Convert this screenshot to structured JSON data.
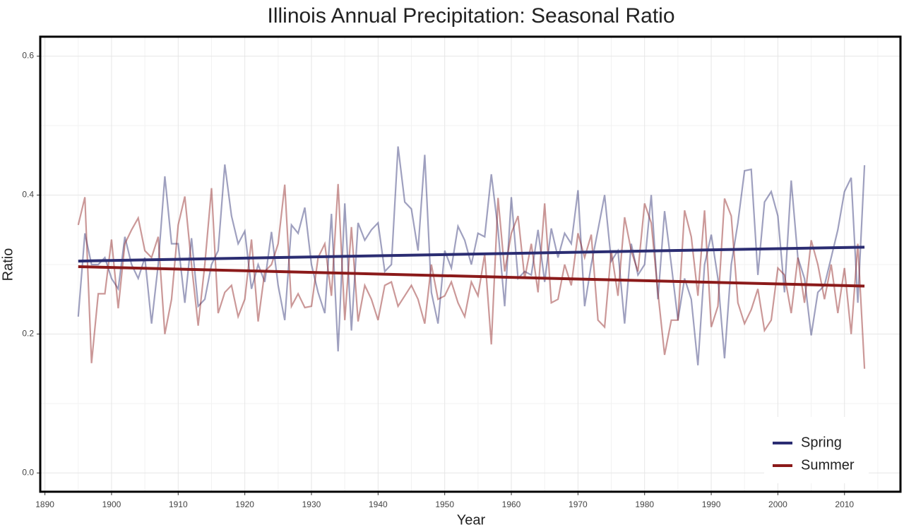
{
  "chart_data": {
    "type": "line",
    "title": "Illinois Annual Precipitation: Seasonal Ratio",
    "x_label": "Year",
    "y_label": "Ratio",
    "x": [
      1895,
      1896,
      1897,
      1898,
      1899,
      1900,
      1901,
      1902,
      1903,
      1904,
      1905,
      1906,
      1907,
      1908,
      1909,
      1910,
      1911,
      1912,
      1913,
      1914,
      1915,
      1916,
      1917,
      1918,
      1919,
      1920,
      1921,
      1922,
      1923,
      1924,
      1925,
      1926,
      1927,
      1928,
      1929,
      1930,
      1931,
      1932,
      1933,
      1934,
      1935,
      1936,
      1937,
      1938,
      1939,
      1940,
      1941,
      1942,
      1943,
      1944,
      1945,
      1946,
      1947,
      1948,
      1949,
      1950,
      1951,
      1952,
      1953,
      1954,
      1955,
      1956,
      1957,
      1958,
      1959,
      1960,
      1961,
      1962,
      1963,
      1964,
      1965,
      1966,
      1967,
      1968,
      1969,
      1970,
      1971,
      1972,
      1973,
      1974,
      1975,
      1976,
      1977,
      1978,
      1979,
      1980,
      1981,
      1982,
      1983,
      1984,
      1985,
      1986,
      1987,
      1988,
      1989,
      1990,
      1991,
      1992,
      1993,
      1994,
      1995,
      1996,
      1997,
      1998,
      1999,
      2000,
      2001,
      2002,
      2003,
      2004,
      2005,
      2006,
      2007,
      2008,
      2009,
      2010,
      2011,
      2012,
      2013
    ],
    "series": [
      {
        "name": "Spring",
        "color": "#2b2d72",
        "trend": [
          0.305,
          0.325
        ],
        "values": [
          0.225,
          0.345,
          0.3,
          0.3,
          0.31,
          0.28,
          0.265,
          0.34,
          0.3,
          0.28,
          0.31,
          0.215,
          0.3,
          0.427,
          0.33,
          0.33,
          0.245,
          0.338,
          0.24,
          0.25,
          0.3,
          0.32,
          0.444,
          0.37,
          0.33,
          0.348,
          0.265,
          0.3,
          0.275,
          0.347,
          0.27,
          0.22,
          0.357,
          0.345,
          0.382,
          0.3,
          0.26,
          0.23,
          0.373,
          0.175,
          0.388,
          0.205,
          0.36,
          0.335,
          0.35,
          0.36,
          0.29,
          0.3,
          0.47,
          0.39,
          0.38,
          0.32,
          0.458,
          0.26,
          0.215,
          0.32,
          0.295,
          0.355,
          0.335,
          0.3,
          0.345,
          0.34,
          0.43,
          0.35,
          0.24,
          0.397,
          0.28,
          0.29,
          0.285,
          0.35,
          0.275,
          0.352,
          0.31,
          0.345,
          0.33,
          0.407,
          0.24,
          0.3,
          0.35,
          0.4,
          0.305,
          0.32,
          0.215,
          0.33,
          0.285,
          0.3,
          0.4,
          0.25,
          0.377,
          0.3,
          0.22,
          0.28,
          0.25,
          0.155,
          0.3,
          0.343,
          0.28,
          0.165,
          0.3,
          0.36,
          0.435,
          0.437,
          0.285,
          0.39,
          0.405,
          0.37,
          0.26,
          0.421,
          0.31,
          0.28,
          0.198,
          0.26,
          0.27,
          0.31,
          0.35,
          0.405,
          0.425,
          0.245,
          0.443
        ]
      },
      {
        "name": "Summer",
        "color": "#8b1a1a",
        "trend": [
          0.297,
          0.269
        ],
        "values": [
          0.357,
          0.397,
          0.158,
          0.258,
          0.258,
          0.336,
          0.237,
          0.33,
          0.35,
          0.367,
          0.32,
          0.31,
          0.34,
          0.2,
          0.25,
          0.357,
          0.398,
          0.3,
          0.212,
          0.3,
          0.41,
          0.23,
          0.26,
          0.27,
          0.225,
          0.25,
          0.336,
          0.218,
          0.29,
          0.3,
          0.33,
          0.415,
          0.24,
          0.258,
          0.238,
          0.24,
          0.31,
          0.33,
          0.255,
          0.416,
          0.22,
          0.354,
          0.218,
          0.27,
          0.25,
          0.22,
          0.27,
          0.275,
          0.24,
          0.255,
          0.27,
          0.25,
          0.215,
          0.3,
          0.25,
          0.255,
          0.275,
          0.245,
          0.225,
          0.275,
          0.255,
          0.315,
          0.185,
          0.396,
          0.29,
          0.345,
          0.37,
          0.28,
          0.33,
          0.26,
          0.388,
          0.245,
          0.25,
          0.3,
          0.27,
          0.345,
          0.31,
          0.343,
          0.22,
          0.21,
          0.32,
          0.255,
          0.368,
          0.32,
          0.29,
          0.388,
          0.36,
          0.26,
          0.17,
          0.22,
          0.22,
          0.378,
          0.34,
          0.255,
          0.378,
          0.21,
          0.24,
          0.395,
          0.37,
          0.245,
          0.215,
          0.235,
          0.265,
          0.205,
          0.22,
          0.295,
          0.285,
          0.23,
          0.31,
          0.245,
          0.335,
          0.3,
          0.25,
          0.3,
          0.23,
          0.295,
          0.2,
          0.33,
          0.15
        ]
      }
    ],
    "xlim": [
      1889.3,
      2018.4
    ],
    "xticks": [
      1890,
      1900,
      1910,
      1920,
      1930,
      1940,
      1950,
      1960,
      1970,
      1980,
      1990,
      2000,
      2010
    ],
    "ylim": [
      -0.027,
      0.628
    ],
    "yticks": [
      {
        "value": 0,
        "label": "0.0"
      },
      0.2,
      0.4,
      0.6
    ],
    "grid": true,
    "legend": "bottom-right"
  }
}
